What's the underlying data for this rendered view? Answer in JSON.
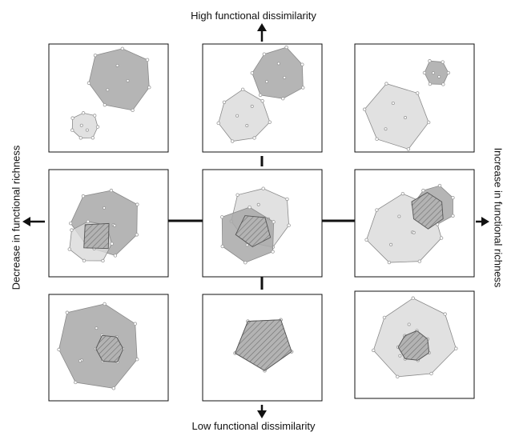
{
  "axes": {
    "top": "High functional dissimilarity",
    "bottom": "Low functional dissimilarity",
    "left": "Decrease in functional richness",
    "right": "Increase in functional richness"
  },
  "colors": {
    "dark_hull": "#a8a8a8",
    "light_hull": "#d9d9d9",
    "hull_stroke": "#8a8a8a",
    "point": "#9a9a9a",
    "overlap_hatch": "#6f6f6f",
    "arrow": "#111111"
  },
  "panels": [
    {
      "id": "high-decrease",
      "description": "large dark hull separated from small light hull"
    },
    {
      "id": "high-center",
      "description": "two equal hulls, barely touching"
    },
    {
      "id": "high-increase",
      "description": "large light hull separated from small dark hull"
    },
    {
      "id": "mid-decrease",
      "description": "dark hull partially overlapping smaller light hull"
    },
    {
      "id": "center",
      "description": "two equal hulls with partial overlap"
    },
    {
      "id": "mid-increase",
      "description": "light hull partially overlapping smaller dark hull"
    },
    {
      "id": "low-decrease",
      "description": "small light hull nested inside large dark hull"
    },
    {
      "id": "low-center",
      "description": "two identical hulls completely overlapping"
    },
    {
      "id": "low-increase",
      "description": "small dark hull nested inside large light hull"
    }
  ]
}
